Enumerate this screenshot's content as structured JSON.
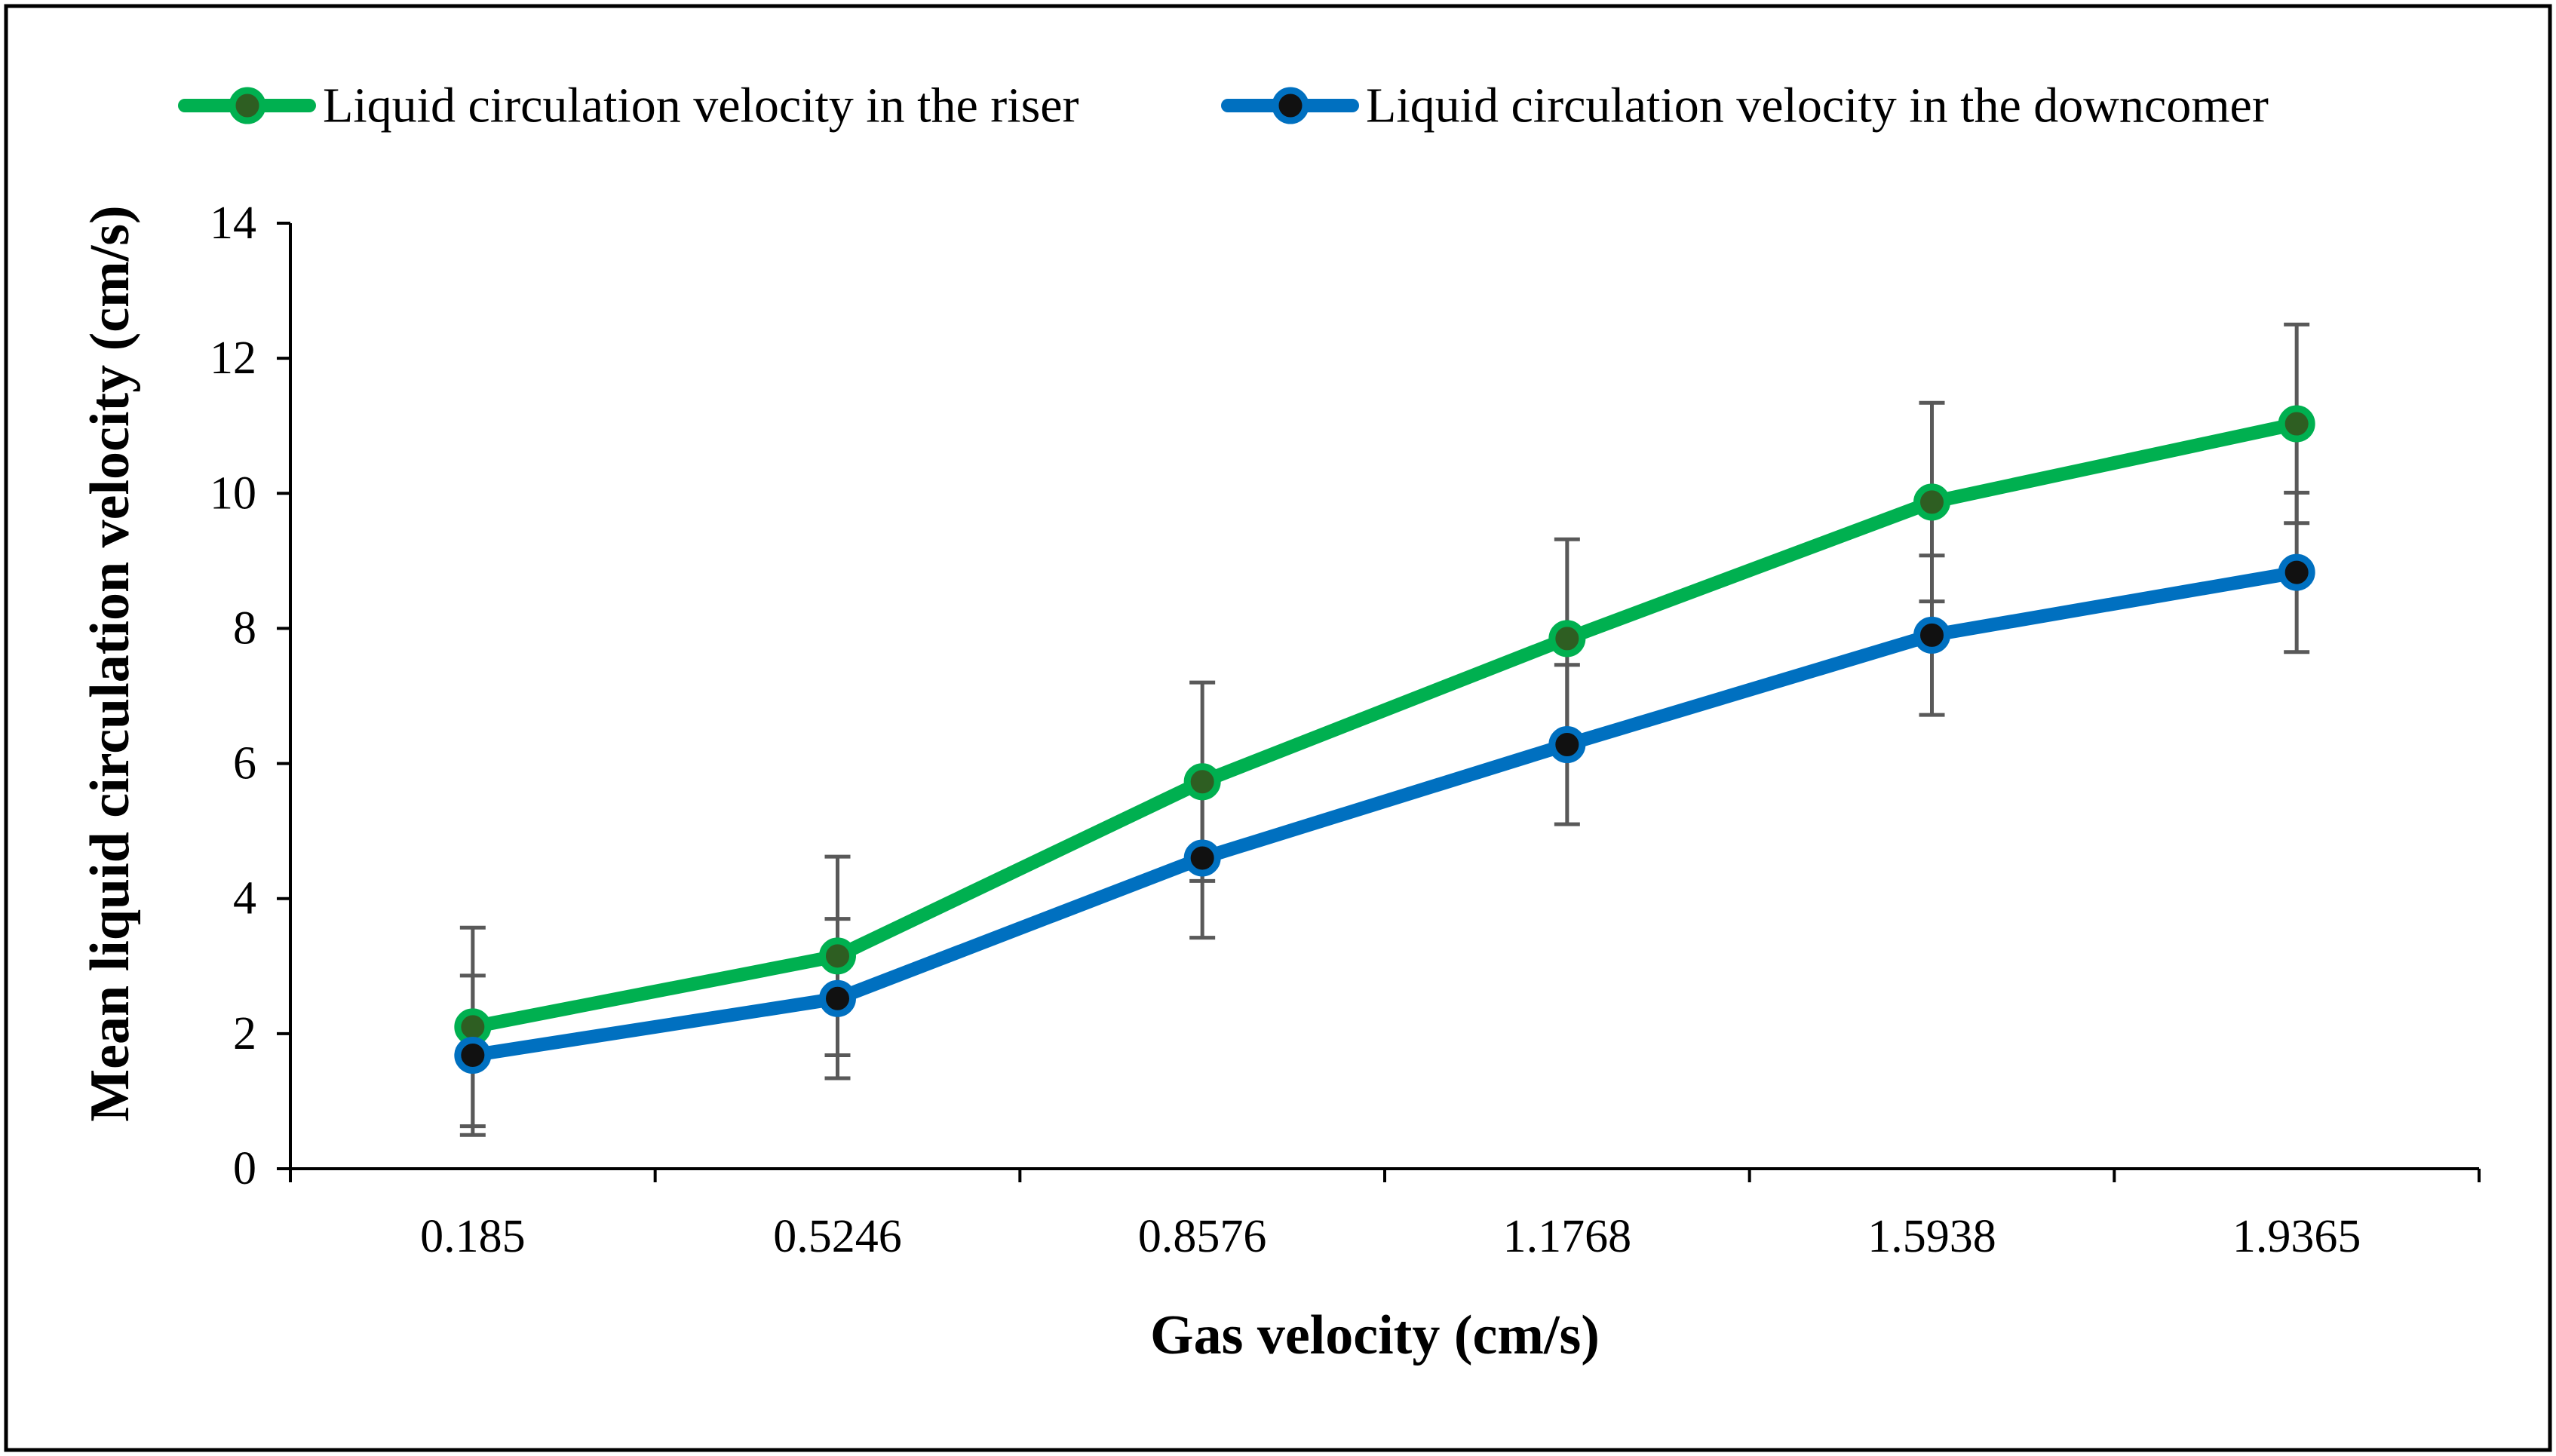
{
  "chart_data": {
    "type": "line",
    "title": "",
    "xlabel": "Gas velocity (cm/s)",
    "ylabel": "Mean liquid circulation velocity (cm/s)",
    "categories": [
      "0.185",
      "0.5246",
      "0.8576",
      "1.1768",
      "1.5938",
      "1.9365"
    ],
    "ylim": [
      0,
      14
    ],
    "yticks": [
      0,
      2,
      4,
      6,
      8,
      10,
      12,
      14
    ],
    "grid": false,
    "legend_position": "top",
    "series": [
      {
        "name": "Liquid circulation velocity in the riser",
        "values": [
          2.1,
          3.15,
          5.73,
          7.85,
          9.87,
          11.03
        ],
        "errors": [
          1.47,
          1.47,
          1.47,
          1.47,
          1.47,
          1.47
        ],
        "line_color": "#00b050",
        "marker_fill": "#2e5e22"
      },
      {
        "name": "Liquid circulation velocity in the downcomer",
        "values": [
          1.68,
          2.52,
          4.6,
          6.28,
          7.9,
          8.83
        ],
        "errors": [
          1.18,
          1.18,
          1.18,
          1.18,
          1.18,
          1.18
        ],
        "line_color": "#0070c0",
        "marker_fill": "#111111"
      }
    ],
    "colors": {
      "axis": "#000000",
      "error_bar": "#595959",
      "frame": "#000000"
    }
  }
}
